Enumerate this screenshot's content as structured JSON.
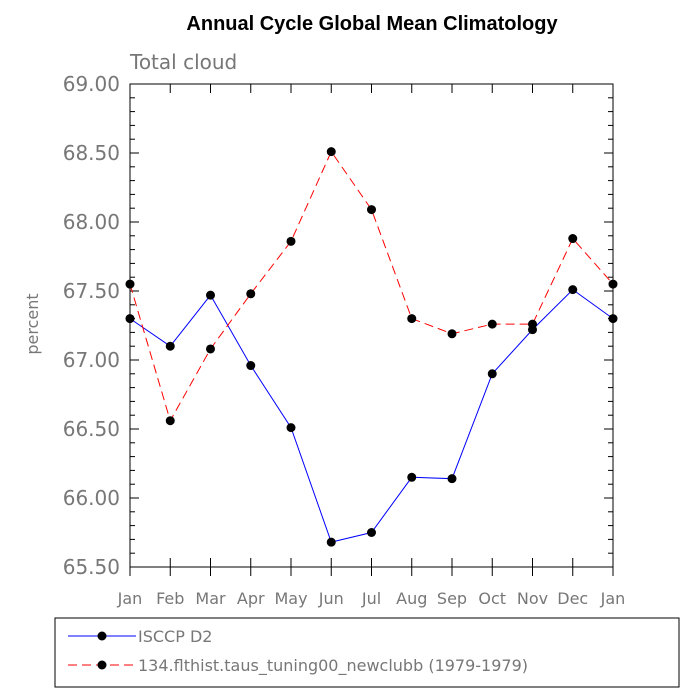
{
  "chart_data": {
    "type": "line",
    "title": "Annual Cycle Global Mean Climatology",
    "subtitle": "Total cloud",
    "xlabel": "",
    "ylabel": "percent",
    "categories": [
      "Jan",
      "Feb",
      "Mar",
      "Apr",
      "May",
      "Jun",
      "Jul",
      "Aug",
      "Sep",
      "Oct",
      "Nov",
      "Dec",
      "Jan"
    ],
    "ylim": [
      65.5,
      69.0
    ],
    "yticks": [
      "65.50",
      "66.00",
      "66.50",
      "67.00",
      "67.50",
      "68.00",
      "68.50",
      "69.00"
    ],
    "legend_position": "bottom",
    "series": [
      {
        "name": "ISCCP D2",
        "color": "#0000ff",
        "dash": "solid",
        "values": [
          67.3,
          67.1,
          67.47,
          66.96,
          66.51,
          65.68,
          65.75,
          66.15,
          66.14,
          66.9,
          67.22,
          67.51,
          67.3
        ]
      },
      {
        "name": "134.flthist.taus_tuning00_newclubb (1979-1979)",
        "color": "#ff0000",
        "dash": "dashed",
        "values": [
          67.55,
          66.56,
          67.08,
          67.48,
          67.86,
          68.51,
          68.09,
          67.3,
          67.19,
          67.26,
          67.26,
          67.88,
          67.55
        ]
      }
    ]
  }
}
